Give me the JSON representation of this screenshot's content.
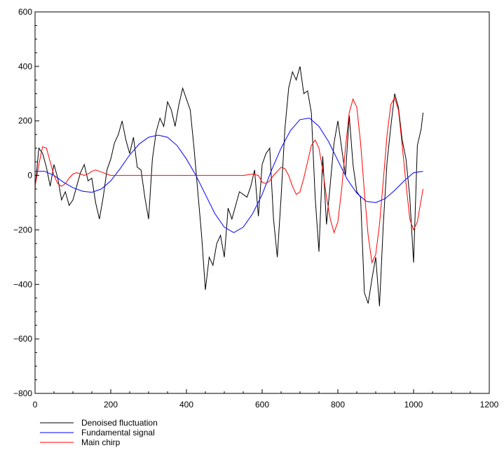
{
  "chart_data": {
    "type": "line",
    "title": "",
    "xlabel": "",
    "ylabel": "",
    "xlim": [
      0,
      1200
    ],
    "ylim": [
      -800,
      600
    ],
    "x_ticks": [
      0,
      200,
      400,
      600,
      800,
      1000,
      1200
    ],
    "x_tick_labels": [
      "0",
      "200",
      "400",
      "600",
      "800",
      "1000",
      "1200"
    ],
    "y_ticks": [
      600,
      400,
      200,
      0,
      -200,
      -400,
      -600,
      -800
    ],
    "y_tick_labels": [
      "600",
      "400",
      "200",
      "0",
      "−200",
      "−400",
      "−600",
      "−800"
    ],
    "grid": false,
    "legend_position": "bottom-left, below plot",
    "series": [
      {
        "name": "Denoised fluctuation",
        "color": "#000000",
        "x": [
          0,
          10,
          20,
          30,
          40,
          50,
          60,
          70,
          80,
          90,
          100,
          110,
          120,
          130,
          140,
          150,
          160,
          170,
          180,
          190,
          200,
          210,
          220,
          230,
          240,
          250,
          260,
          270,
          280,
          290,
          300,
          310,
          320,
          330,
          340,
          350,
          360,
          370,
          380,
          390,
          400,
          410,
          420,
          430,
          440,
          450,
          460,
          470,
          480,
          490,
          500,
          510,
          520,
          530,
          540,
          550,
          560,
          570,
          580,
          590,
          600,
          610,
          620,
          630,
          640,
          650,
          660,
          670,
          680,
          690,
          700,
          710,
          720,
          730,
          740,
          750,
          760,
          770,
          780,
          790,
          800,
          810,
          820,
          830,
          840,
          850,
          860,
          870,
          880,
          890,
          900,
          910,
          920,
          930,
          940,
          950,
          960,
          970,
          980,
          990,
          1000,
          1010,
          1020,
          1025
        ],
        "values": [
          -50,
          100,
          80,
          30,
          -40,
          40,
          -10,
          -90,
          -60,
          -110,
          -90,
          -40,
          10,
          40,
          -20,
          -10,
          -100,
          -160,
          -80,
          20,
          60,
          120,
          150,
          200,
          130,
          80,
          140,
          30,
          20,
          -80,
          -160,
          60,
          160,
          210,
          180,
          270,
          240,
          180,
          260,
          320,
          280,
          240,
          100,
          -60,
          -220,
          -420,
          -300,
          -330,
          -250,
          -220,
          -300,
          -120,
          -160,
          -110,
          -60,
          -70,
          -80,
          -40,
          20,
          -150,
          40,
          80,
          100,
          -160,
          -300,
          -80,
          170,
          320,
          380,
          350,
          400,
          300,
          310,
          230,
          -80,
          -280,
          70,
          -180,
          -30,
          120,
          200,
          100,
          0,
          220,
          40,
          -60,
          -80,
          -430,
          -470,
          -380,
          -300,
          -480,
          -180,
          50,
          180,
          300,
          250,
          130,
          60,
          -80,
          -320,
          110,
          170,
          230
        ]
      },
      {
        "name": "Fundamental signal",
        "color": "#0000ff",
        "x": [
          0,
          25,
          50,
          75,
          100,
          125,
          150,
          175,
          200,
          225,
          250,
          275,
          300,
          325,
          350,
          375,
          400,
          425,
          450,
          475,
          500,
          525,
          550,
          575,
          600,
          625,
          650,
          675,
          700,
          725,
          750,
          775,
          800,
          825,
          850,
          875,
          900,
          925,
          950,
          975,
          1000,
          1025
        ],
        "values": [
          15,
          15,
          0,
          -25,
          -45,
          -58,
          -62,
          -50,
          -20,
          25,
          75,
          115,
          140,
          148,
          140,
          110,
          60,
          0,
          -70,
          -140,
          -190,
          -210,
          -190,
          -140,
          -70,
          20,
          100,
          165,
          205,
          210,
          180,
          125,
          55,
          -15,
          -65,
          -95,
          -100,
          -85,
          -55,
          -20,
          10,
          15
        ]
      },
      {
        "name": "Main chirp",
        "color": "#ff0000",
        "x": [
          0,
          10,
          20,
          30,
          40,
          50,
          60,
          70,
          80,
          90,
          100,
          110,
          120,
          130,
          140,
          150,
          160,
          170,
          180,
          200,
          250,
          300,
          350,
          400,
          450,
          500,
          550,
          575,
          590,
          600,
          610,
          620,
          630,
          640,
          650,
          660,
          670,
          680,
          690,
          700,
          710,
          720,
          730,
          740,
          750,
          760,
          770,
          780,
          790,
          800,
          810,
          820,
          830,
          840,
          850,
          860,
          870,
          880,
          890,
          900,
          910,
          920,
          930,
          940,
          950,
          960,
          970,
          980,
          990,
          1000,
          1010,
          1020,
          1025
        ],
        "values": [
          -40,
          40,
          105,
          100,
          50,
          0,
          -30,
          -40,
          -30,
          -10,
          5,
          10,
          5,
          0,
          5,
          15,
          20,
          15,
          10,
          0,
          0,
          0,
          0,
          0,
          0,
          0,
          0,
          5,
          0,
          -25,
          -30,
          -20,
          0,
          15,
          30,
          25,
          0,
          -40,
          -70,
          -60,
          -10,
          50,
          110,
          130,
          100,
          20,
          -80,
          -160,
          -210,
          -170,
          -50,
          100,
          230,
          280,
          250,
          120,
          -60,
          -220,
          -320,
          -290,
          -180,
          -20,
          150,
          260,
          285,
          240,
          110,
          -30,
          -160,
          -200,
          -170,
          -90,
          -50
        ]
      }
    ]
  }
}
